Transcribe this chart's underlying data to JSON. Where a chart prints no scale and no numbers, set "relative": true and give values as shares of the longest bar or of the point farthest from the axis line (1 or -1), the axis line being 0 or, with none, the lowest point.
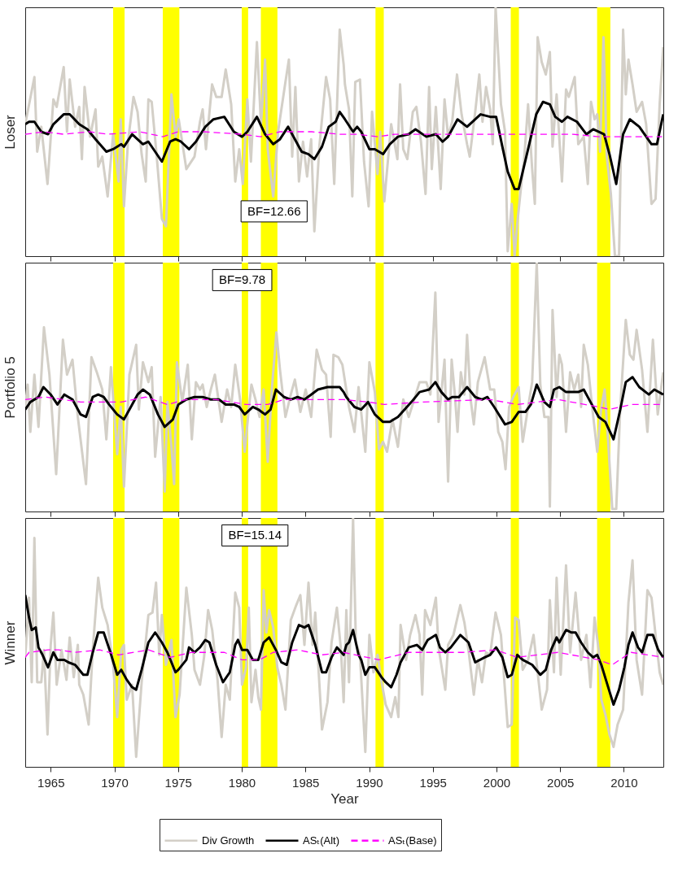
{
  "chart_data": [
    {
      "type": "line",
      "ylabel": "Loser",
      "relative": true,
      "xlim": [
        1963,
        2013.1
      ],
      "xticks": [
        1965,
        1970,
        1975,
        1980,
        1985,
        1990,
        1995,
        2000,
        2005,
        2010
      ],
      "tick_labels": false,
      "annotations": [
        "BF=12.66"
      ],
      "bands": [
        {
          "axis": "x",
          "from": 1969.9,
          "to": 1970.8,
          "color": "#ffff00"
        },
        {
          "axis": "x",
          "from": 1973.8,
          "to": 1975.1,
          "color": "#ffff00"
        },
        {
          "axis": "x",
          "from": 1980.0,
          "to": 1980.5,
          "color": "#ffff00"
        },
        {
          "axis": "x",
          "from": 1981.5,
          "to": 1982.8,
          "color": "#ffff00"
        },
        {
          "axis": "x",
          "from": 1990.5,
          "to": 1991.15,
          "color": "#ffff00"
        },
        {
          "axis": "x",
          "from": 2001.12,
          "to": 2001.76,
          "color": "#ffff00"
        },
        {
          "axis": "x",
          "from": 2007.9,
          "to": 2008.94,
          "color": "#ffff00"
        }
      ],
      "series": [
        {
          "color": "#d3cfc7",
          "line_style": "solid",
          "x": [
            1963.0,
            1963.72,
            1963.94,
            1964.26,
            1964.75,
            1965.21,
            1965.47,
            1966.02,
            1966.28,
            1966.49,
            1966.92,
            1967.24,
            1967.45,
            1967.66,
            1968.09,
            1968.52,
            1968.73,
            1969.05,
            1969.47,
            1969.9,
            1970.33,
            1970.5,
            1970.75,
            1971.07,
            1971.5,
            1971.82,
            1972.14,
            1972.46,
            1972.67,
            1972.93,
            1973.31,
            1973.73,
            1974.05,
            1974.48,
            1974.8,
            1975.05,
            1975.65,
            1976.29,
            1976.72,
            1976.93,
            1977.19,
            1977.67,
            1978.0,
            1978.42,
            1978.74,
            1979.17,
            1979.49,
            1979.8,
            1980.08,
            1980.44,
            1980.72,
            1981.19,
            1981.51,
            1981.83,
            1982.04,
            1982.47,
            1982.85,
            1983.43,
            1983.7,
            1983.96,
            1984.21,
            1984.49,
            1984.81,
            1985.13,
            1985.45,
            1985.7,
            1986.09,
            1986.62,
            1986.94,
            1987.26,
            1987.69,
            1988.0,
            1988.1,
            1988.42,
            1988.68,
            1988.91,
            1989.28,
            1989.6,
            1989.96,
            1990.23,
            1990.66,
            1990.87,
            1991.19,
            1991.73,
            1992.22,
            1992.43,
            1992.68,
            1993.0,
            1993.43,
            1993.71,
            1994.07,
            1994.43,
            1994.71,
            1994.92,
            1995.24,
            1995.62,
            1995.92,
            1996.2,
            1996.52,
            1996.9,
            1997.26,
            1997.69,
            1997.9,
            1998.33,
            1998.65,
            1998.9,
            1999.18,
            1999.5,
            1999.71,
            1999.93,
            2000.35,
            2000.67,
            2000.88,
            2001.2,
            2001.42,
            2001.63,
            2001.95,
            2002.16,
            2002.48,
            2002.8,
            2003.01,
            2003.23,
            2003.55,
            2003.87,
            2004.19,
            2004.4,
            2004.72,
            2005.14,
            2005.46,
            2005.68,
            2006.14,
            2006.42,
            2006.85,
            2007.17,
            2007.42,
            2007.7,
            2007.91,
            2008.13,
            2008.4,
            2008.66,
            2008.98,
            2009.3,
            2009.62,
            2009.94,
            2010.15,
            2010.36,
            2010.68,
            2011.0,
            2011.43,
            2011.75,
            2012.17,
            2012.49,
            2012.81,
            2013.09
          ],
          "values": [
            0.53,
            0.72,
            0.42,
            0.52,
            0.29,
            0.63,
            0.6,
            0.76,
            0.5,
            0.71,
            0.52,
            0.6,
            0.39,
            0.68,
            0.48,
            0.59,
            0.36,
            0.4,
            0.24,
            0.49,
            0.3,
            0.55,
            0.2,
            0.46,
            0.64,
            0.58,
            0.41,
            0.3,
            0.63,
            0.62,
            0.41,
            0.15,
            0.12,
            0.65,
            0.48,
            0.55,
            0.35,
            0.4,
            0.54,
            0.59,
            0.43,
            0.69,
            0.64,
            0.64,
            0.75,
            0.61,
            0.3,
            0.43,
            0.29,
            0.63,
            0.38,
            0.86,
            0.53,
            0.79,
            0.43,
            0.24,
            0.5,
            0.7,
            0.79,
            0.4,
            0.68,
            0.3,
            0.46,
            0.32,
            0.47,
            0.1,
            0.44,
            0.72,
            0.63,
            0.29,
            0.91,
            0.77,
            0.69,
            0.59,
            0.24,
            0.7,
            0.71,
            0.38,
            0.2,
            0.58,
            0.33,
            0.5,
            0.22,
            0.53,
            0.39,
            0.69,
            0.43,
            0.39,
            0.58,
            0.6,
            0.46,
            0.25,
            0.68,
            0.35,
            0.6,
            0.27,
            0.63,
            0.48,
            0.54,
            0.73,
            0.57,
            0.45,
            0.4,
            0.58,
            0.73,
            0.54,
            0.68,
            0.59,
            0.45,
            1,
            0.61,
            0.5,
            0.02,
            0.21,
            0,
            0.13,
            0.29,
            0.38,
            0.61,
            0.35,
            0.21,
            0.88,
            0.78,
            0.73,
            0.82,
            0.44,
            0.65,
            0.3,
            0.67,
            0.64,
            0.72,
            0.45,
            0.48,
            0.29,
            0.62,
            0.55,
            0.57,
            0.42,
            0.88,
            0.4,
            0.25,
            0,
            0,
            0.91,
            0.65,
            0.79,
            0.69,
            0.58,
            0.62,
            0.53,
            0.21,
            0.23,
            0.61,
            0.84
          ]
        },
        {
          "color": "#000000",
          "line_style": "solid",
          "x": [
            1963.0,
            1963.3,
            1963.72,
            1964.26,
            1964.79,
            1965.21,
            1966.02,
            1966.49,
            1967.24,
            1967.88,
            1968.52,
            1969.37,
            1969.9,
            1970.54,
            1970.75,
            1971.39,
            1972.24,
            1972.67,
            1973.2,
            1973.73,
            1974.37,
            1974.8,
            1975.23,
            1975.86,
            1976.4,
            1977.14,
            1977.78,
            1978.63,
            1979.38,
            1980.02,
            1980.44,
            1981.19,
            1981.83,
            1982.47,
            1983.0,
            1983.64,
            1984.17,
            1984.7,
            1985.24,
            1985.7,
            1986.3,
            1986.83,
            1987.37,
            1987.69,
            1988.1,
            1988.74,
            1989.06,
            1989.38,
            1990.02,
            1990.45,
            1991.09,
            1991.62,
            1992.26,
            1993.11,
            1993.64,
            1994.49,
            1995.24,
            1995.77,
            1996.2,
            1996.94,
            1997.69,
            1998.75,
            1999.5,
            1999.97,
            2000.46,
            2000.88,
            2001.42,
            2001.74,
            2002.48,
            2003.12,
            2003.65,
            2004.19,
            2004.61,
            2005.14,
            2005.57,
            2006.32,
            2007.06,
            2007.59,
            2008.45,
            2008.87,
            2009.4,
            2009.94,
            2010.47,
            2011.21,
            2012.17,
            2012.6,
            2013.09
          ],
          "values": [
            0.53,
            0.54,
            0.54,
            0.5,
            0.49,
            0.53,
            0.57,
            0.57,
            0.53,
            0.51,
            0.47,
            0.42,
            0.43,
            0.45,
            0.44,
            0.49,
            0.45,
            0.46,
            0.42,
            0.38,
            0.46,
            0.47,
            0.46,
            0.43,
            0.46,
            0.52,
            0.55,
            0.56,
            0.5,
            0.48,
            0.5,
            0.56,
            0.49,
            0.45,
            0.47,
            0.52,
            0.47,
            0.42,
            0.41,
            0.39,
            0.44,
            0.52,
            0.54,
            0.58,
            0.55,
            0.5,
            0.52,
            0.5,
            0.43,
            0.43,
            0.41,
            0.45,
            0.48,
            0.49,
            0.51,
            0.48,
            0.49,
            0.46,
            0.48,
            0.55,
            0.52,
            0.57,
            0.56,
            0.56,
            0.44,
            0.34,
            0.27,
            0.27,
            0.43,
            0.57,
            0.62,
            0.61,
            0.56,
            0.54,
            0.56,
            0.54,
            0.49,
            0.51,
            0.49,
            0.41,
            0.29,
            0.49,
            0.55,
            0.52,
            0.45,
            0.45,
            0.57
          ]
        },
        {
          "color": "#ff00ff",
          "line_style": "dashed",
          "x": [
            1963.0,
            1964.5,
            1966.0,
            1968.0,
            1969.5,
            1972.0,
            1973.8,
            1975.0,
            1977.0,
            1980.0,
            1981.5,
            1983.0,
            1985.5,
            1987.7,
            1989.0,
            1990.7,
            1992.0,
            1995.0,
            1998.0,
            2001.0,
            2003.0,
            2006.0,
            2008.0,
            2009.0,
            2011.0,
            2013.0
          ],
          "values": [
            0.49,
            0.5,
            0.49,
            0.5,
            0.49,
            0.5,
            0.48,
            0.5,
            0.5,
            0.49,
            0.48,
            0.5,
            0.5,
            0.49,
            0.49,
            0.48,
            0.49,
            0.49,
            0.49,
            0.49,
            0.49,
            0.49,
            0.48,
            0.48,
            0.48,
            0.48
          ]
        }
      ]
    },
    {
      "type": "line",
      "ylabel": "Portfolio 5",
      "relative": true,
      "xlim": [
        1963,
        2013.1
      ],
      "xticks": [
        1965,
        1970,
        1975,
        1980,
        1985,
        1990,
        1995,
        2000,
        2005,
        2010
      ],
      "tick_labels": false,
      "annotations": [
        "BF=9.78"
      ],
      "bands": [
        {
          "axis": "x",
          "from": 1969.9,
          "to": 1970.8,
          "color": "#ffff00"
        },
        {
          "axis": "x",
          "from": 1973.8,
          "to": 1975.1,
          "color": "#ffff00"
        },
        {
          "axis": "x",
          "from": 1980.0,
          "to": 1980.5,
          "color": "#ffff00"
        },
        {
          "axis": "x",
          "from": 1981.5,
          "to": 1982.8,
          "color": "#ffff00"
        },
        {
          "axis": "x",
          "from": 1990.5,
          "to": 1991.15,
          "color": "#ffff00"
        },
        {
          "axis": "x",
          "from": 2001.12,
          "to": 2001.76,
          "color": "#ffff00"
        },
        {
          "axis": "x",
          "from": 2007.9,
          "to": 2008.94,
          "color": "#ffff00"
        }
      ],
      "series": [
        {
          "color": "#d3cfc7",
          "line_style": "solid",
          "x": [
            1963.0,
            1963.19,
            1963.4,
            1963.72,
            1964.04,
            1964.47,
            1964.9,
            1965.43,
            1965.96,
            1966.28,
            1966.71,
            1967.13,
            1967.77,
            1968.2,
            1968.62,
            1969.05,
            1969.37,
            1969.73,
            1970.22,
            1970.5,
            1970.75,
            1971.18,
            1971.71,
            1971.92,
            1972.24,
            1972.67,
            1972.93,
            1973.2,
            1973.63,
            1973.95,
            1974.16,
            1974.48,
            1974.69,
            1974.91,
            1975.33,
            1975.76,
            1976.08,
            1976.4,
            1976.72,
            1976.93,
            1977.25,
            1977.57,
            1977.89,
            1978.42,
            1978.85,
            1979.17,
            1979.49,
            1979.87,
            1980.23,
            1980.55,
            1980.76,
            1981.08,
            1981.4,
            1981.72,
            1982.04,
            1982.36,
            1982.72,
            1983.0,
            1983.43,
            1983.85,
            1984.17,
            1984.6,
            1985.02,
            1985.45,
            1985.88,
            1986.3,
            1986.62,
            1986.98,
            1987.2,
            1987.58,
            1987.9,
            1988.42,
            1988.85,
            1989.17,
            1989.7,
            1990.02,
            1990.45,
            1990.77,
            1991.09,
            1991.41,
            1991.83,
            1992.26,
            1992.68,
            1993.11,
            1993.54,
            1993.96,
            1994.49,
            1994.81,
            1995.2,
            1995.45,
            1995.92,
            1996.2,
            1996.48,
            1996.73,
            1996.94,
            1997.2,
            1997.48,
            1997.69,
            1997.97,
            1998.22,
            1998.54,
            1999.07,
            1999.5,
            1999.82,
            2000.14,
            2000.46,
            2000.71,
            2000.99,
            2001.31,
            2001.74,
            2002.06,
            2002.48,
            2002.8,
            2003.16,
            2003.44,
            2003.76,
            2004.08,
            2004.19,
            2004.4,
            2004.72,
            2004.93,
            2005.14,
            2005.46,
            2005.78,
            2006.1,
            2006.42,
            2006.64,
            2006.85,
            2007.17,
            2007.49,
            2007.91,
            2008.23,
            2008.49,
            2008.77,
            2009.09,
            2009.4,
            2009.72,
            2010.15,
            2010.47,
            2010.75,
            2011.0,
            2011.43,
            2011.85,
            2012.28,
            2012.66,
            2013.09
          ],
          "values": [
            0.42,
            0.51,
            0.32,
            0.55,
            0.34,
            0.74,
            0.55,
            0.15,
            0.69,
            0.55,
            0.61,
            0.38,
            0.11,
            0.62,
            0.56,
            0.49,
            0.29,
            0.58,
            0.23,
            0.42,
            0.1,
            0.55,
            0.67,
            0.41,
            0.6,
            0.52,
            0.58,
            0.22,
            0.46,
            0.08,
            0.44,
            0.26,
            0.11,
            0.6,
            0.44,
            0.59,
            0.29,
            0.52,
            0.49,
            0.51,
            0.42,
            0.49,
            0.55,
            0.36,
            0.49,
            0.42,
            0.59,
            0.45,
            0.24,
            0.41,
            0.51,
            0.45,
            0.38,
            0.49,
            0.2,
            0.49,
            0.72,
            0.57,
            0.38,
            0.47,
            0.53,
            0.4,
            0.49,
            0.38,
            0.65,
            0.57,
            0.55,
            0.3,
            0.63,
            0.62,
            0.59,
            0.42,
            0.32,
            0.5,
            0.24,
            0.6,
            0.48,
            0.25,
            0.28,
            0.24,
            0.37,
            0.26,
            0.45,
            0.38,
            0.45,
            0.52,
            0.52,
            0.47,
            0.88,
            0.36,
            0.61,
            0.12,
            0.61,
            0.47,
            0.32,
            0.56,
            0.47,
            0.71,
            0.45,
            0.35,
            0.52,
            0.62,
            0.49,
            0.49,
            0.32,
            0.28,
            0.17,
            0.42,
            0.46,
            0.5,
            0.28,
            0.42,
            0.52,
            1,
            0.51,
            0.38,
            0.38,
            0.02,
            0.81,
            0.46,
            0.63,
            0.59,
            0.32,
            0.56,
            0.49,
            0.55,
            0.42,
            0.67,
            0.59,
            0.43,
            0.24,
            0.42,
            0.49,
            0.28,
            0.01,
            0.01,
            0.42,
            0.77,
            0.63,
            0.61,
            0.73,
            0.57,
            0.32,
            0.69,
            0.39,
            0.56
          ]
        },
        {
          "color": "#000000",
          "line_style": "solid",
          "x": [
            1963.0,
            1963.4,
            1964.04,
            1964.43,
            1965.0,
            1965.53,
            1966.07,
            1966.71,
            1967.35,
            1967.77,
            1968.3,
            1968.73,
            1969.16,
            1969.58,
            1970.22,
            1970.75,
            1971.29,
            1971.82,
            1972.24,
            1972.78,
            1973.42,
            1973.95,
            1974.59,
            1975.02,
            1975.65,
            1976.29,
            1976.93,
            1977.57,
            1978.21,
            1978.74,
            1979.38,
            1979.8,
            1980.23,
            1980.87,
            1981.3,
            1981.83,
            1982.26,
            1982.68,
            1983.32,
            1983.85,
            1984.38,
            1984.92,
            1985.45,
            1985.98,
            1986.73,
            1987.26,
            1987.69,
            1988.0,
            1988.21,
            1988.85,
            1989.38,
            1989.92,
            1990.45,
            1991.09,
            1991.62,
            1992.26,
            1992.79,
            1993.32,
            1993.96,
            1994.71,
            1995.2,
            1995.67,
            1996.2,
            1996.52,
            1997.05,
            1997.69,
            1998.33,
            1998.86,
            1999.29,
            1999.82,
            2000.67,
            2001.2,
            2001.74,
            2002.27,
            2002.7,
            2003.16,
            2003.76,
            2004.19,
            2004.51,
            2004.93,
            2005.46,
            2005.89,
            2006.42,
            2006.85,
            2007.38,
            2008.02,
            2008.55,
            2009.19,
            2009.72,
            2010.15,
            2010.68,
            2011.21,
            2011.96,
            2012.39,
            2013.09
          ],
          "values": [
            0.41,
            0.44,
            0.46,
            0.5,
            0.47,
            0.43,
            0.47,
            0.45,
            0.39,
            0.38,
            0.46,
            0.47,
            0.46,
            0.43,
            0.39,
            0.37,
            0.42,
            0.47,
            0.49,
            0.47,
            0.39,
            0.34,
            0.37,
            0.43,
            0.45,
            0.46,
            0.46,
            0.45,
            0.45,
            0.43,
            0.43,
            0.42,
            0.39,
            0.42,
            0.41,
            0.39,
            0.41,
            0.49,
            0.46,
            0.45,
            0.46,
            0.45,
            0.47,
            0.49,
            0.5,
            0.5,
            0.5,
            0.48,
            0.46,
            0.42,
            0.41,
            0.44,
            0.39,
            0.36,
            0.36,
            0.38,
            0.41,
            0.44,
            0.48,
            0.49,
            0.52,
            0.48,
            0.45,
            0.46,
            0.46,
            0.5,
            0.46,
            0.45,
            0.46,
            0.42,
            0.35,
            0.36,
            0.4,
            0.4,
            0.43,
            0.51,
            0.44,
            0.42,
            0.49,
            0.5,
            0.48,
            0.48,
            0.48,
            0.49,
            0.44,
            0.38,
            0.36,
            0.29,
            0.41,
            0.52,
            0.54,
            0.5,
            0.47,
            0.49,
            0.47
          ]
        },
        {
          "color": "#ff00ff",
          "line_style": "dashed",
          "x": [
            1963.0,
            1964.58,
            1967.35,
            1970.54,
            1972.46,
            1974.16,
            1975.65,
            1977.99,
            1980.34,
            1982.04,
            1983.32,
            1985.45,
            1988.0,
            1989.92,
            1991.19,
            1994.17,
            1999.5,
            2001.63,
            2004.82,
            2008.02,
            2008.87,
            2010.57,
            2013.09
          ],
          "values": [
            0.45,
            0.46,
            0.44,
            0.44,
            0.46,
            0.43,
            0.45,
            0.45,
            0.43,
            0.43,
            0.45,
            0.45,
            0.45,
            0.44,
            0.43,
            0.44,
            0.45,
            0.43,
            0.45,
            0.42,
            0.41,
            0.43,
            0.43
          ]
        }
      ]
    },
    {
      "type": "line",
      "ylabel": "Winner",
      "xlabel": "Year",
      "relative": true,
      "xlim": [
        1963,
        2013.1
      ],
      "xticks": [
        1965,
        1970,
        1975,
        1980,
        1985,
        1990,
        1995,
        2000,
        2005,
        2010
      ],
      "tick_labels": "x",
      "legend": "bottom",
      "annotations": [
        "BF=15.14"
      ],
      "bands": [
        {
          "axis": "x",
          "from": 1969.9,
          "to": 1970.8,
          "color": "#ffff00"
        },
        {
          "axis": "x",
          "from": 1973.8,
          "to": 1975.1,
          "color": "#ffff00"
        },
        {
          "axis": "x",
          "from": 1980.0,
          "to": 1980.5,
          "color": "#ffff00"
        },
        {
          "axis": "x",
          "from": 1981.5,
          "to": 1982.8,
          "color": "#ffff00"
        },
        {
          "axis": "x",
          "from": 1990.5,
          "to": 1991.15,
          "color": "#ffff00"
        },
        {
          "axis": "x",
          "from": 2001.12,
          "to": 2001.76,
          "color": "#ffff00"
        },
        {
          "axis": "x",
          "from": 2007.9,
          "to": 2008.94,
          "color": "#ffff00"
        }
      ],
      "series": [
        {
          "name": "Div Growth",
          "color": "#d3cfc7",
          "line_style": "solid",
          "x": [
            1963.0,
            1963.3,
            1963.51,
            1963.72,
            1963.94,
            1964.26,
            1964.47,
            1964.75,
            1965.0,
            1965.21,
            1965.47,
            1965.85,
            1966.24,
            1966.49,
            1966.81,
            1967.13,
            1967.24,
            1967.56,
            1967.98,
            1968.3,
            1968.73,
            1969.05,
            1969.47,
            1969.9,
            1970.22,
            1970.54,
            1970.75,
            1970.97,
            1971.39,
            1971.71,
            1972.14,
            1972.67,
            1972.99,
            1973.27,
            1973.52,
            1973.73,
            1974.05,
            1974.48,
            1974.8,
            1975.12,
            1975.65,
            1976.08,
            1976.29,
            1976.72,
            1977.04,
            1977.36,
            1977.68,
            1978.1,
            1978.42,
            1978.74,
            1979.06,
            1979.49,
            1979.8,
            1980.02,
            1980.34,
            1980.55,
            1980.76,
            1981.08,
            1981.3,
            1981.51,
            1981.72,
            1981.93,
            1982.15,
            1982.47,
            1982.79,
            1983.11,
            1983.43,
            1983.85,
            1984.28,
            1984.6,
            1984.92,
            1985.24,
            1985.56,
            1985.77,
            1986.3,
            1986.73,
            1987.05,
            1987.47,
            1987.79,
            1988.0,
            1988.21,
            1988.42,
            1988.74,
            1988.96,
            1989.28,
            1989.7,
            1990.02,
            1990.34,
            1990.66,
            1990.98,
            1991.3,
            1991.73,
            1992.05,
            1992.3,
            1992.47,
            1992.9,
            1993.22,
            1993.64,
            1993.96,
            1994.17,
            1994.39,
            1994.81,
            1995.24,
            1995.45,
            1995.98,
            1996.2,
            1996.62,
            1997.16,
            1997.48,
            1997.8,
            1998.22,
            1998.54,
            1998.86,
            1999.18,
            1999.5,
            1999.93,
            2000.35,
            2000.88,
            2001.2,
            2001.46,
            2001.74,
            2002.06,
            2002.48,
            2002.91,
            2003.55,
            2003.97,
            2004.19,
            2004.51,
            2004.72,
            2005.04,
            2005.46,
            2005.78,
            2006.21,
            2006.64,
            2007.06,
            2007.38,
            2007.7,
            2008.02,
            2008.23,
            2008.55,
            2008.87,
            2009.19,
            2009.51,
            2009.94,
            2010.36,
            2010.68,
            2011.0,
            2011.43,
            2011.85,
            2012.17,
            2012.49,
            2012.81,
            2013.09
          ],
          "values": [
            0.44,
            0.68,
            0.34,
            0.92,
            0.34,
            0.34,
            0.47,
            0.13,
            0.49,
            0.62,
            0.33,
            0.47,
            0.35,
            0.52,
            0.36,
            0.49,
            0.33,
            0.29,
            0.17,
            0.47,
            0.76,
            0.64,
            0.57,
            0.41,
            0.2,
            0.47,
            0.49,
            0.27,
            0.33,
            0.04,
            0.34,
            0.61,
            0.62,
            0.74,
            0.45,
            0.61,
            0.41,
            0.51,
            0.2,
            0.29,
            0.72,
            0.53,
            0.39,
            0.33,
            0.44,
            0.63,
            0.55,
            0.35,
            0.12,
            0.33,
            0.27,
            0.7,
            0.64,
            0.33,
            0.4,
            0.64,
            0.26,
            0.39,
            0.28,
            0.23,
            0.71,
            0.54,
            0.63,
            0.56,
            0.4,
            0.33,
            0.23,
            0.59,
            0.65,
            0.69,
            0.49,
            0.74,
            0.49,
            0.62,
            0.15,
            0.26,
            0.5,
            0.64,
            0.47,
            0.26,
            0.63,
            0.34,
            1,
            0.5,
            0.45,
            0.06,
            0.53,
            0.38,
            0.45,
            0.34,
            0.25,
            0.2,
            0.28,
            0.2,
            0.57,
            0.43,
            0.53,
            0.61,
            0.53,
            0.29,
            0.63,
            0.57,
            0.68,
            0.48,
            0.31,
            0.49,
            0.53,
            0.65,
            0.58,
            0.47,
            0.29,
            0.43,
            0.34,
            0.46,
            0.45,
            0.62,
            0.53,
            0.16,
            0.17,
            0.6,
            0.59,
            0.39,
            0.43,
            0.53,
            0.23,
            0.31,
            0.67,
            0.38,
            0.76,
            0.37,
            0.81,
            0.46,
            0.7,
            0.43,
            0.53,
            0.32,
            0.6,
            0.47,
            0.27,
            0.21,
            0.13,
            0.08,
            0.17,
            0.23,
            0.66,
            0.83,
            0.43,
            0.29,
            0.71,
            0.68,
            0.53,
            0.38,
            0.33
          ]
        },
        {
          "name": "ASₜ(Alt)",
          "color": "#000000",
          "line_style": "solid",
          "x": [
            1963.0,
            1963.3,
            1963.51,
            1963.83,
            1964.04,
            1964.36,
            1964.79,
            1965.21,
            1965.53,
            1966.07,
            1966.39,
            1966.92,
            1967.56,
            1967.88,
            1968.3,
            1968.73,
            1969.16,
            1969.69,
            1970.22,
            1970.54,
            1970.97,
            1971.39,
            1971.71,
            1972.14,
            1972.67,
            1973.2,
            1973.73,
            1974.16,
            1974.8,
            1975.02,
            1975.65,
            1975.86,
            1976.29,
            1976.72,
            1977.14,
            1977.46,
            1977.99,
            1978.53,
            1979.06,
            1979.49,
            1979.7,
            1980.02,
            1980.44,
            1980.87,
            1981.3,
            1981.72,
            1982.15,
            1982.68,
            1983.11,
            1983.53,
            1983.96,
            1984.49,
            1984.92,
            1985.24,
            1985.77,
            1986.3,
            1986.62,
            1987.05,
            1987.47,
            1988.0,
            1988.21,
            1988.42,
            1988.74,
            1989.17,
            1989.38,
            1989.7,
            1990.02,
            1990.45,
            1990.98,
            1991.3,
            1991.73,
            1992.15,
            1992.47,
            1993.11,
            1993.75,
            1994.17,
            1994.6,
            1995.24,
            1995.56,
            1995.98,
            1996.41,
            1997.16,
            1997.8,
            1998.33,
            1999.07,
            1999.5,
            1999.97,
            2000.46,
            2000.88,
            2001.2,
            2001.63,
            2002.06,
            2002.8,
            2003.44,
            2003.87,
            2004.29,
            2004.72,
            2004.93,
            2005.46,
            2005.89,
            2006.21,
            2006.64,
            2007.17,
            2007.59,
            2007.91,
            2008.23,
            2008.77,
            2009.19,
            2009.62,
            2010.04,
            2010.36,
            2010.68,
            2011.11,
            2011.43,
            2011.85,
            2012.28,
            2012.7,
            2013.09
          ],
          "values": [
            0.69,
            0.6,
            0.55,
            0.56,
            0.48,
            0.45,
            0.4,
            0.46,
            0.43,
            0.43,
            0.42,
            0.41,
            0.37,
            0.37,
            0.46,
            0.54,
            0.54,
            0.46,
            0.37,
            0.39,
            0.35,
            0.32,
            0.31,
            0.39,
            0.5,
            0.54,
            0.5,
            0.46,
            0.38,
            0.39,
            0.43,
            0.48,
            0.46,
            0.48,
            0.51,
            0.5,
            0.41,
            0.34,
            0.38,
            0.49,
            0.51,
            0.47,
            0.47,
            0.43,
            0.43,
            0.5,
            0.52,
            0.47,
            0.42,
            0.41,
            0.5,
            0.57,
            0.56,
            0.57,
            0.49,
            0.38,
            0.38,
            0.44,
            0.48,
            0.45,
            0.49,
            0.5,
            0.55,
            0.45,
            0.43,
            0.37,
            0.4,
            0.4,
            0.36,
            0.34,
            0.32,
            0.37,
            0.42,
            0.48,
            0.49,
            0.47,
            0.51,
            0.53,
            0.48,
            0.46,
            0.48,
            0.53,
            0.5,
            0.42,
            0.44,
            0.45,
            0.48,
            0.44,
            0.36,
            0.37,
            0.45,
            0.43,
            0.41,
            0.37,
            0.39,
            0.47,
            0.52,
            0.5,
            0.55,
            0.54,
            0.54,
            0.5,
            0.46,
            0.44,
            0.45,
            0.41,
            0.32,
            0.25,
            0.31,
            0.4,
            0.49,
            0.54,
            0.48,
            0.46,
            0.53,
            0.53,
            0.47,
            0.44
          ]
        },
        {
          "name": "ASₜ(Base)",
          "color": "#ff00ff",
          "line_style": "dashed",
          "x": [
            1963.0,
            1963.3,
            1964.79,
            1965.64,
            1966.92,
            1968.84,
            1970.33,
            1972.67,
            1974.37,
            1976.08,
            1978.63,
            1980.02,
            1981.4,
            1982.47,
            1984.38,
            1986.3,
            1988.0,
            1990.77,
            1993.11,
            1997.37,
            1999.93,
            2001.63,
            2004.82,
            2008.02,
            2009.08,
            2010.57,
            2013.09
          ],
          "values": [
            0.44,
            0.46,
            0.47,
            0.47,
            0.46,
            0.47,
            0.45,
            0.47,
            0.44,
            0.46,
            0.46,
            0.43,
            0.43,
            0.46,
            0.47,
            0.45,
            0.46,
            0.43,
            0.46,
            0.46,
            0.47,
            0.44,
            0.46,
            0.43,
            0.41,
            0.46,
            0.44
          ]
        }
      ]
    }
  ]
}
